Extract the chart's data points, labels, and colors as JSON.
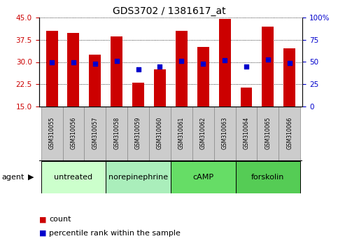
{
  "title": "GDS3702 / 1381617_at",
  "samples": [
    "GSM310055",
    "GSM310056",
    "GSM310057",
    "GSM310058",
    "GSM310059",
    "GSM310060",
    "GSM310061",
    "GSM310062",
    "GSM310063",
    "GSM310064",
    "GSM310065",
    "GSM310066"
  ],
  "counts": [
    40.5,
    39.8,
    32.5,
    38.5,
    23.0,
    27.5,
    40.5,
    35.0,
    44.5,
    21.5,
    42.0,
    34.5
  ],
  "percentile": [
    50,
    50,
    48,
    51,
    42,
    45,
    51,
    48,
    52,
    45,
    53,
    49
  ],
  "ylim_left": [
    15,
    45
  ],
  "ylim_right": [
    0,
    100
  ],
  "yticks_left": [
    15,
    22.5,
    30,
    37.5,
    45
  ],
  "yticks_right": [
    0,
    25,
    50,
    75,
    100
  ],
  "bar_color": "#cc0000",
  "dot_color": "#0000cc",
  "bar_bottom": 15,
  "agents": [
    {
      "label": "untreated",
      "start": 0,
      "end": 3
    },
    {
      "label": "norepinephrine",
      "start": 3,
      "end": 6
    },
    {
      "label": "cAMP",
      "start": 6,
      "end": 9
    },
    {
      "label": "forskolin",
      "start": 9,
      "end": 12
    }
  ],
  "agent_colors": [
    "#ccffcc",
    "#ccffcc",
    "#66ee66",
    "#66ee66"
  ],
  "tick_label_fontsize": 7.5,
  "sample_fontsize": 5.5,
  "agent_fontsize": 8,
  "title_fontsize": 10
}
